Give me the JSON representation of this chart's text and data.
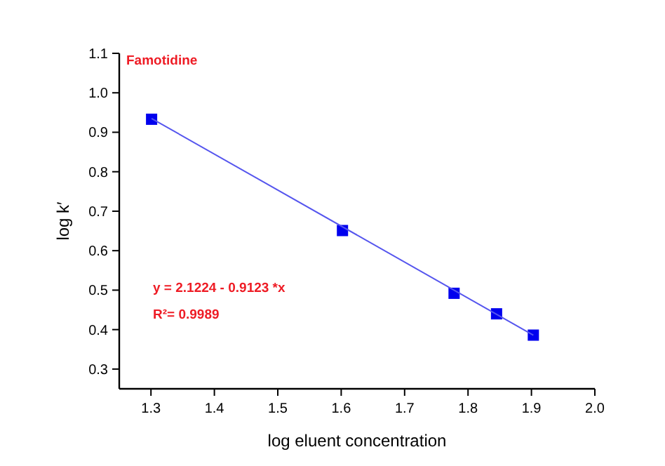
{
  "chart_data": {
    "type": "scatter",
    "xlabel": "log eluent concentration",
    "ylabel": "log k′",
    "annotations": [
      "Famotidine",
      "y = 2.1224 - 0.9123 *x",
      "R²= 0.9989"
    ],
    "series": [
      {
        "color": "#0000ee",
        "marker": "square",
        "x": [
          1.301,
          1.602,
          1.778,
          1.845,
          1.903
        ],
        "values": [
          0.933,
          0.651,
          0.492,
          0.44,
          0.386
        ]
      },
      {
        "type": "line",
        "color": "#5555ee",
        "marker": "none",
        "x": [
          1.301,
          1.903
        ],
        "values": [
          0.935,
          0.386
        ]
      }
    ],
    "xlim": [
      1.25,
      2.0
    ],
    "xticks": [
      1.3,
      1.4,
      1.5,
      1.6,
      1.7,
      1.8,
      1.9,
      {
        "value": 2,
        "label": "2.0"
      }
    ],
    "ylim": [
      0.25,
      1.1
    ],
    "yticks": [
      0.3,
      0.4,
      0.5,
      0.6,
      0.7,
      0.8,
      0.9,
      {
        "value": 1,
        "label": "1.0"
      },
      1.1
    ],
    "grid": false
  }
}
